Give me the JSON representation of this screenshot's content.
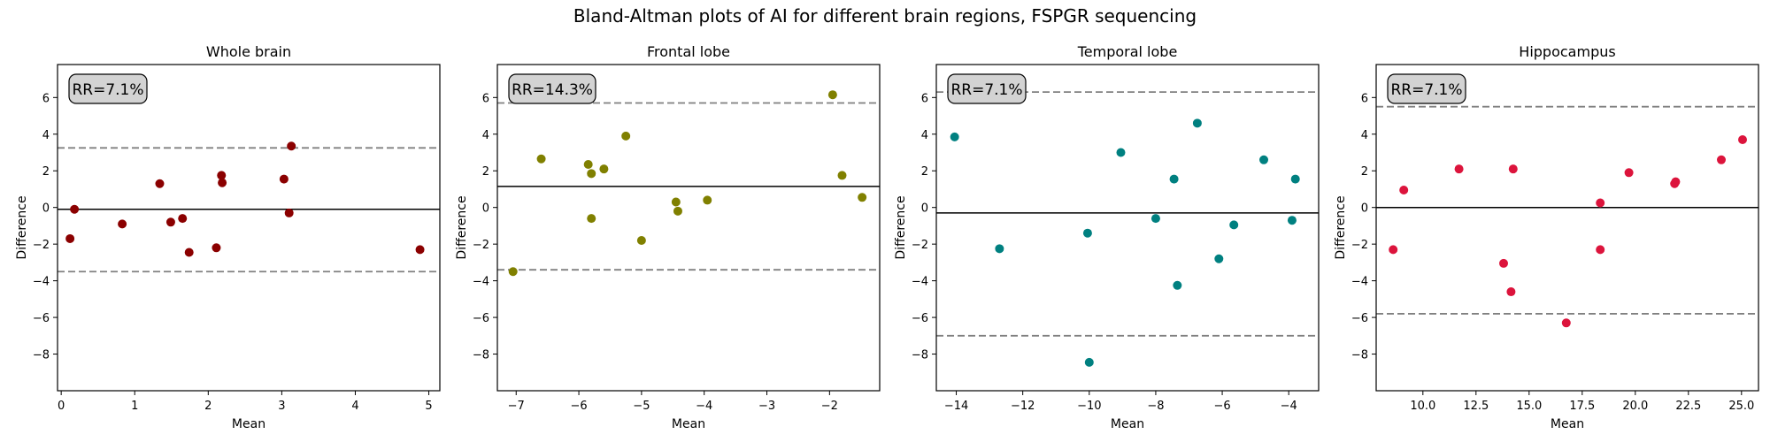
{
  "title": "Bland-Altman plots of AI for different brain regions, FSPGR sequencing",
  "colors": {
    "limit_line": "#808080",
    "mean_line": "#000000",
    "box_fill": "#d3d3d3"
  },
  "chart_data": [
    {
      "type": "scatter",
      "title": "Whole brain",
      "xlabel": "Mean",
      "ylabel": "Difference",
      "annotation": "RR=7.1%",
      "color": "#8b0000",
      "xlim": [
        -0.05,
        5.15
      ],
      "ylim": [
        -10,
        7.8
      ],
      "xticks": [
        0,
        1,
        2,
        3,
        4,
        5
      ],
      "xtick_labels": [
        "0",
        "1",
        "2",
        "3",
        "4",
        "5"
      ],
      "yticks": [
        -8,
        -6,
        -4,
        -2,
        0,
        2,
        4,
        6
      ],
      "ytick_labels": [
        "−8",
        "−6",
        "−4",
        "−2",
        "0",
        "2",
        "4",
        "6"
      ],
      "mean_diff": -0.1,
      "upper_loa": 3.25,
      "lower_loa": -3.5,
      "points": [
        {
          "x": 0.12,
          "y": -1.7
        },
        {
          "x": 0.18,
          "y": -0.1
        },
        {
          "x": 0.83,
          "y": -0.9
        },
        {
          "x": 1.34,
          "y": 1.3
        },
        {
          "x": 1.49,
          "y": -0.8
        },
        {
          "x": 1.65,
          "y": -0.6
        },
        {
          "x": 1.74,
          "y": -2.45
        },
        {
          "x": 2.11,
          "y": -2.2
        },
        {
          "x": 2.18,
          "y": 1.75
        },
        {
          "x": 2.19,
          "y": 1.35
        },
        {
          "x": 3.03,
          "y": 1.55
        },
        {
          "x": 3.1,
          "y": -0.3
        },
        {
          "x": 3.13,
          "y": 3.35
        },
        {
          "x": 4.88,
          "y": -2.3
        }
      ]
    },
    {
      "type": "scatter",
      "title": "Frontal lobe",
      "xlabel": "Mean",
      "ylabel": "Difference",
      "annotation": "RR=14.3%",
      "color": "#808000",
      "xlim": [
        -7.3,
        -1.2
      ],
      "ylim": [
        -10,
        7.8
      ],
      "xticks": [
        -7,
        -6,
        -5,
        -4,
        -3,
        -2
      ],
      "xtick_labels": [
        "−7",
        "−6",
        "−5",
        "−4",
        "−3",
        "−2"
      ],
      "yticks": [
        -8,
        -6,
        -4,
        -2,
        0,
        2,
        4,
        6
      ],
      "ytick_labels": [
        "−8",
        "−6",
        "−4",
        "−2",
        "0",
        "2",
        "4",
        "6"
      ],
      "mean_diff": 1.15,
      "upper_loa": 5.7,
      "lower_loa": -3.4,
      "points": [
        {
          "x": -7.05,
          "y": -3.5
        },
        {
          "x": -6.6,
          "y": 2.65
        },
        {
          "x": -5.85,
          "y": 2.35
        },
        {
          "x": -5.8,
          "y": 1.85
        },
        {
          "x": -5.8,
          "y": -0.6
        },
        {
          "x": -5.6,
          "y": 2.1
        },
        {
          "x": -5.25,
          "y": 3.9
        },
        {
          "x": -5.0,
          "y": -1.8
        },
        {
          "x": -4.45,
          "y": 0.3
        },
        {
          "x": -4.42,
          "y": -0.2
        },
        {
          "x": -3.95,
          "y": 0.4
        },
        {
          "x": -1.95,
          "y": 6.15
        },
        {
          "x": -1.8,
          "y": 1.75
        },
        {
          "x": -1.48,
          "y": 0.55
        }
      ]
    },
    {
      "type": "scatter",
      "title": "Temporal lobe",
      "xlabel": "Mean",
      "ylabel": "Difference",
      "annotation": "RR=7.1%",
      "color": "#008080",
      "xlim": [
        -14.6,
        -3.1
      ],
      "ylim": [
        -10,
        7.8
      ],
      "xticks": [
        -14,
        -12,
        -10,
        -8,
        -6,
        -4
      ],
      "xtick_labels": [
        "−14",
        "−12",
        "−10",
        "−8",
        "−6",
        "−4"
      ],
      "yticks": [
        -8,
        -6,
        -4,
        -2,
        0,
        2,
        4,
        6
      ],
      "ytick_labels": [
        "−8",
        "−6",
        "−4",
        "−2",
        "0",
        "2",
        "4",
        "6"
      ],
      "mean_diff": -0.3,
      "upper_loa": 6.3,
      "lower_loa": -7.0,
      "points": [
        {
          "x": -14.05,
          "y": 3.85
        },
        {
          "x": -12.7,
          "y": -2.25
        },
        {
          "x": -10.05,
          "y": -1.4
        },
        {
          "x": -10.0,
          "y": -8.45
        },
        {
          "x": -9.05,
          "y": 3.0
        },
        {
          "x": -8.0,
          "y": -0.6
        },
        {
          "x": -7.45,
          "y": 1.55
        },
        {
          "x": -7.35,
          "y": -4.25
        },
        {
          "x": -6.75,
          "y": 4.6
        },
        {
          "x": -6.1,
          "y": -2.8
        },
        {
          "x": -5.65,
          "y": -0.95
        },
        {
          "x": -4.75,
          "y": 2.6
        },
        {
          "x": -3.9,
          "y": -0.7
        },
        {
          "x": -3.8,
          "y": 1.55
        }
      ]
    },
    {
      "type": "scatter",
      "title": "Hippocampus",
      "xlabel": "Mean",
      "ylabel": "Difference",
      "annotation": "RR=7.1%",
      "color": "#dc143c",
      "xlim": [
        7.8,
        25.8
      ],
      "ylim": [
        -10,
        7.8
      ],
      "xticks": [
        10,
        12.5,
        15,
        17.5,
        20,
        22.5,
        25
      ],
      "xtick_labels": [
        "10.0",
        "12.5",
        "15.0",
        "17.5",
        "20.0",
        "22.5",
        "25.0"
      ],
      "yticks": [
        -8,
        -6,
        -4,
        -2,
        0,
        2,
        4,
        6
      ],
      "ytick_labels": [
        "−8",
        "−6",
        "−4",
        "−2",
        "0",
        "2",
        "4",
        "6"
      ],
      "mean_diff": 0.0,
      "upper_loa": 5.5,
      "lower_loa": -5.8,
      "points": [
        {
          "x": 8.6,
          "y": -2.3
        },
        {
          "x": 9.1,
          "y": 0.95
        },
        {
          "x": 11.7,
          "y": 2.1
        },
        {
          "x": 13.8,
          "y": -3.05
        },
        {
          "x": 14.15,
          "y": -4.6
        },
        {
          "x": 14.25,
          "y": 2.1
        },
        {
          "x": 16.75,
          "y": -6.3
        },
        {
          "x": 18.35,
          "y": 0.25
        },
        {
          "x": 18.35,
          "y": -2.3
        },
        {
          "x": 19.7,
          "y": 1.9
        },
        {
          "x": 21.85,
          "y": 1.3
        },
        {
          "x": 21.9,
          "y": 1.4
        },
        {
          "x": 24.05,
          "y": 2.6
        },
        {
          "x": 25.05,
          "y": 3.7
        }
      ]
    }
  ]
}
